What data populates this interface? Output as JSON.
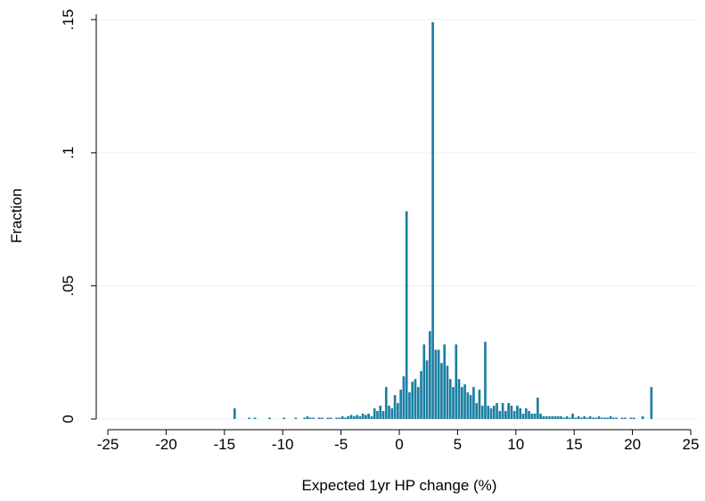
{
  "chart_data": {
    "type": "histogram",
    "x_label": "Expected 1yr HP change (%)",
    "y_label": "Fraction",
    "color": "#1b7fa3",
    "grid": true,
    "xlim": [
      -25,
      25
    ],
    "xticks": [
      -25,
      -20,
      -15,
      -10,
      -5,
      0,
      5,
      10,
      15,
      20,
      25
    ],
    "ylim": [
      0,
      0.15
    ],
    "yticks": [
      0,
      {
        "value": 0.05,
        "label": ".05"
      },
      {
        "value": 0.1,
        "label": ".1"
      },
      {
        "value": 0.15,
        "label": ".15"
      }
    ],
    "bins": [
      -14.5,
      -14.25,
      -14,
      -13.75,
      -13.5,
      -13.25,
      -13,
      -12.75,
      -12.5,
      -12.25,
      -12,
      -11.75,
      -11.5,
      -11.25,
      -11,
      -10.75,
      -10.5,
      -10.25,
      -10,
      -9.75,
      -9.5,
      -9.25,
      -9,
      -8.75,
      -8.5,
      -8.25,
      -8,
      -7.75,
      -7.5,
      -7.25,
      -7,
      -6.75,
      -6.5,
      -6.25,
      -6,
      -5.75,
      -5.5,
      -5.25,
      -5,
      -4.75,
      -4.5,
      -4.25,
      -4,
      -3.75,
      -3.5,
      -3.25,
      -3,
      -2.75,
      -2.5,
      -2.25,
      -2,
      -1.75,
      -1.5,
      -1.25,
      -1,
      -0.75,
      -0.5,
      -0.25,
      0,
      0.25,
      0.5,
      0.75,
      1,
      1.25,
      1.5,
      1.75,
      2,
      2.25,
      2.5,
      2.75,
      3,
      3.25,
      3.5,
      3.75,
      4,
      4.25,
      4.5,
      4.75,
      5,
      5.25,
      5.5,
      5.75,
      6,
      6.25,
      6.5,
      6.75,
      7,
      7.25,
      7.5,
      7.75,
      8,
      8.25,
      8.5,
      8.75,
      9,
      9.25,
      9.5,
      9.75,
      10,
      10.25,
      10.5,
      10.75,
      11,
      11.25,
      11.5,
      11.75,
      12,
      12.25,
      12.5,
      12.75,
      13,
      13.25,
      13.5,
      13.75,
      14,
      14.25,
      14.5,
      14.75,
      15,
      15.25,
      15.5,
      15.75,
      16,
      16.25,
      16.5,
      16.75,
      17,
      17.25,
      17.5,
      17.75,
      18,
      18.25,
      18.5,
      18.75,
      19,
      19.25,
      19.5,
      19.75,
      20,
      20.25,
      20.5,
      20.75,
      21,
      21.25,
      21.5,
      21.75,
      22
    ],
    "values": [
      0,
      0.004,
      0,
      0,
      0,
      0,
      0.0005,
      0,
      0.0005,
      0,
      0,
      0,
      0,
      0.0005,
      0,
      0,
      0,
      0,
      0.0005,
      0,
      0,
      0,
      0.0005,
      0,
      0,
      0.0005,
      0.001,
      0.0005,
      0.0005,
      0,
      0.0005,
      0.0005,
      0,
      0.0005,
      0.0005,
      0,
      0.0005,
      0.0005,
      0.001,
      0.0005,
      0.001,
      0.0015,
      0.001,
      0.0015,
      0.001,
      0.002,
      0.0015,
      0.002,
      0.001,
      0.004,
      0.003,
      0.005,
      0.003,
      0.012,
      0.005,
      0.004,
      0.009,
      0.006,
      0.011,
      0.016,
      0.078,
      0.01,
      0.014,
      0.015,
      0.012,
      0.018,
      0.028,
      0.022,
      0.033,
      0.149,
      0.026,
      0.026,
      0.021,
      0.028,
      0.02,
      0.015,
      0.012,
      0.028,
      0.015,
      0.012,
      0.013,
      0.01,
      0.009,
      0.012,
      0.006,
      0.011,
      0.005,
      0.029,
      0.005,
      0.004,
      0.005,
      0.006,
      0.003,
      0.006,
      0.003,
      0.006,
      0.005,
      0.003,
      0.005,
      0.004,
      0.002,
      0.004,
      0.003,
      0.002,
      0.002,
      0.008,
      0.002,
      0.001,
      0.001,
      0.001,
      0.001,
      0.001,
      0.001,
      0.001,
      0.0005,
      0.001,
      0.0005,
      0.002,
      0.0005,
      0.001,
      0.0005,
      0.001,
      0.0005,
      0.001,
      0.0005,
      0.0005,
      0.001,
      0.0005,
      0.0005,
      0.0005,
      0.001,
      0.0005,
      0.0005,
      0,
      0.0005,
      0.0005,
      0,
      0.0005,
      0.0005,
      0,
      0,
      0.001,
      0,
      0,
      0.012,
      0
    ]
  }
}
